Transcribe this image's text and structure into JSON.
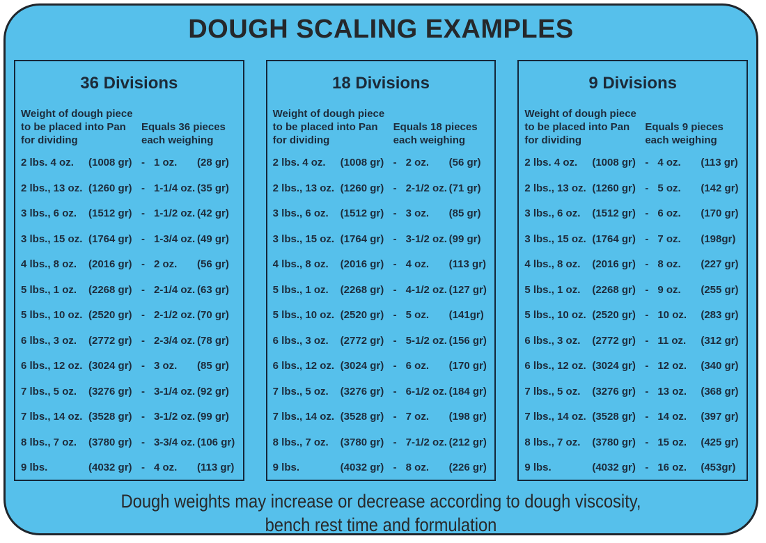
{
  "title": "DOUGH SCALING EXAMPLES",
  "separator": "-",
  "colors": {
    "background_blue": "#56c0eb",
    "outer_border": "#20262c",
    "panel_border": "#14273a",
    "text": "#1d2c3c"
  },
  "left_header": {
    "line1": "Weight of dough piece",
    "line2": "to be placed into Pan",
    "line3": "for dividing"
  },
  "footer": {
    "line1": "Dough weights may increase or decrease according to dough viscosity,",
    "line2": "bench rest time and formulation"
  },
  "panels": [
    {
      "heading": "36 Divisions",
      "right_header_line1": "Equals 36 pieces",
      "right_header_line2": "each weighing",
      "rows": [
        {
          "pan": "2 lbs. 4 oz.",
          "pan_gr": "(1008 gr)",
          "piece": "1 oz.",
          "piece_gr": "(28 gr)"
        },
        {
          "pan": "2 lbs., 13 oz.",
          "pan_gr": "(1260 gr)",
          "piece": "1-1/4 oz.",
          "piece_gr": "(35 gr)"
        },
        {
          "pan": "3 lbs., 6 oz.",
          "pan_gr": "(1512 gr)",
          "piece": "1-1/2 oz.",
          "piece_gr": "(42 gr)"
        },
        {
          "pan": "3 lbs., 15 oz.",
          "pan_gr": "(1764 gr)",
          "piece": "1-3/4 oz.",
          "piece_gr": "(49 gr)"
        },
        {
          "pan": "4 lbs., 8 oz.",
          "pan_gr": "(2016 gr)",
          "piece": "2 oz.",
          "piece_gr": "(56 gr)"
        },
        {
          "pan": "5 lbs., 1 oz.",
          "pan_gr": "(2268 gr)",
          "piece": "2-1/4 oz.",
          "piece_gr": "(63 gr)"
        },
        {
          "pan": "5 lbs., 10 oz.",
          "pan_gr": "(2520 gr)",
          "piece": "2-1/2 oz.",
          "piece_gr": "(70 gr)"
        },
        {
          "pan": "6 lbs., 3 oz.",
          "pan_gr": "(2772 gr)",
          "piece": "2-3/4 oz.",
          "piece_gr": "(78 gr)"
        },
        {
          "pan": "6 lbs., 12 oz.",
          "pan_gr": "(3024 gr)",
          "piece": "3 oz.",
          "piece_gr": "(85 gr)"
        },
        {
          "pan": "7 lbs., 5 oz.",
          "pan_gr": "(3276 gr)",
          "piece": "3-1/4 oz.",
          "piece_gr": "(92 gr)"
        },
        {
          "pan": "7 lbs., 14 oz.",
          "pan_gr": "(3528 gr)",
          "piece": "3-1/2 oz.",
          "piece_gr": "(99 gr)"
        },
        {
          "pan": "8 lbs., 7 oz.",
          "pan_gr": "(3780 gr)",
          "piece": "3-3/4 oz.",
          "piece_gr": "(106 gr)"
        },
        {
          "pan": "9 lbs.",
          "pan_gr": "(4032 gr)",
          "piece": "4 oz.",
          "piece_gr": "(113 gr)"
        }
      ]
    },
    {
      "heading": "18 Divisions",
      "right_header_line1": "Equals 18 pieces",
      "right_header_line2": "each weighing",
      "rows": [
        {
          "pan": "2 lbs. 4 oz.",
          "pan_gr": "(1008 gr)",
          "piece": "2 oz.",
          "piece_gr": "(56 gr)"
        },
        {
          "pan": "2 lbs., 13 oz.",
          "pan_gr": "(1260 gr)",
          "piece": "2-1/2 oz.",
          "piece_gr": "(71 gr)"
        },
        {
          "pan": "3 lbs., 6 oz.",
          "pan_gr": "(1512 gr)",
          "piece": "3 oz.",
          "piece_gr": "(85 gr)"
        },
        {
          "pan": "3 lbs., 15 oz.",
          "pan_gr": "(1764 gr)",
          "piece": "3-1/2 oz.",
          "piece_gr": "(99 gr)"
        },
        {
          "pan": "4 lbs., 8 oz.",
          "pan_gr": "(2016 gr)",
          "piece": "4 oz.",
          "piece_gr": "(113 gr)"
        },
        {
          "pan": "5 lbs., 1 oz.",
          "pan_gr": "(2268 gr)",
          "piece": "4-1/2 oz.",
          "piece_gr": "(127 gr)"
        },
        {
          "pan": "5 lbs., 10 oz.",
          "pan_gr": "(2520 gr)",
          "piece": "5 oz.",
          "piece_gr": "(141gr)"
        },
        {
          "pan": "6 lbs., 3 oz.",
          "pan_gr": "(2772 gr)",
          "piece": "5-1/2 oz.",
          "piece_gr": "(156 gr)"
        },
        {
          "pan": "6 lbs., 12 oz.",
          "pan_gr": "(3024 gr)",
          "piece": "6 oz.",
          "piece_gr": "(170 gr)"
        },
        {
          "pan": "7 lbs., 5 oz.",
          "pan_gr": "(3276 gr)",
          "piece": "6-1/2 oz.",
          "piece_gr": "(184 gr)"
        },
        {
          "pan": "7 lbs., 14 oz.",
          "pan_gr": "(3528 gr)",
          "piece": "7 oz.",
          "piece_gr": "(198 gr)"
        },
        {
          "pan": "8 lbs., 7 oz.",
          "pan_gr": "(3780 gr)",
          "piece": "7-1/2 oz.",
          "piece_gr": "(212 gr)"
        },
        {
          "pan": "9 lbs.",
          "pan_gr": "(4032 gr)",
          "piece": "8 oz.",
          "piece_gr": "(226 gr)"
        }
      ]
    },
    {
      "heading": "9 Divisions",
      "right_header_line1": "Equals 9 pieces",
      "right_header_line2": "each weighing",
      "rows": [
        {
          "pan": "2 lbs. 4 oz.",
          "pan_gr": "(1008 gr)",
          "piece": "4 oz.",
          "piece_gr": "(113 gr)"
        },
        {
          "pan": "2 lbs., 13 oz.",
          "pan_gr": "(1260 gr)",
          "piece": "5 oz.",
          "piece_gr": "(142 gr)"
        },
        {
          "pan": "3 lbs., 6 oz.",
          "pan_gr": "(1512 gr)",
          "piece": "6 oz.",
          "piece_gr": "(170 gr)"
        },
        {
          "pan": "3 lbs., 15 oz.",
          "pan_gr": "(1764 gr)",
          "piece": "7 oz.",
          "piece_gr": "(198gr)"
        },
        {
          "pan": "4 lbs., 8 oz.",
          "pan_gr": "(2016 gr)",
          "piece": "8 oz.",
          "piece_gr": "(227 gr)"
        },
        {
          "pan": "5 lbs., 1 oz.",
          "pan_gr": "(2268 gr)",
          "piece": "9 oz.",
          "piece_gr": "(255 gr)"
        },
        {
          "pan": "5 lbs., 10 oz.",
          "pan_gr": "(2520 gr)",
          "piece": "10 oz.",
          "piece_gr": "(283 gr)"
        },
        {
          "pan": "6 lbs., 3 oz.",
          "pan_gr": "(2772 gr)",
          "piece": "11 oz.",
          "piece_gr": "(312 gr)"
        },
        {
          "pan": "6 lbs., 12 oz.",
          "pan_gr": "(3024 gr)",
          "piece": "12 oz.",
          "piece_gr": "(340 gr)"
        },
        {
          "pan": "7 lbs., 5 oz.",
          "pan_gr": "(3276 gr)",
          "piece": "13 oz.",
          "piece_gr": "(368 gr)"
        },
        {
          "pan": "7 lbs., 14 oz.",
          "pan_gr": "(3528 gr)",
          "piece": "14 oz.",
          "piece_gr": "(397 gr)"
        },
        {
          "pan": "8 lbs., 7 oz.",
          "pan_gr": "(3780 gr)",
          "piece": "15 oz.",
          "piece_gr": "(425 gr)"
        },
        {
          "pan": "9 lbs.",
          "pan_gr": "(4032 gr)",
          "piece": "16 oz.",
          "piece_gr": "(453gr)"
        }
      ]
    }
  ]
}
